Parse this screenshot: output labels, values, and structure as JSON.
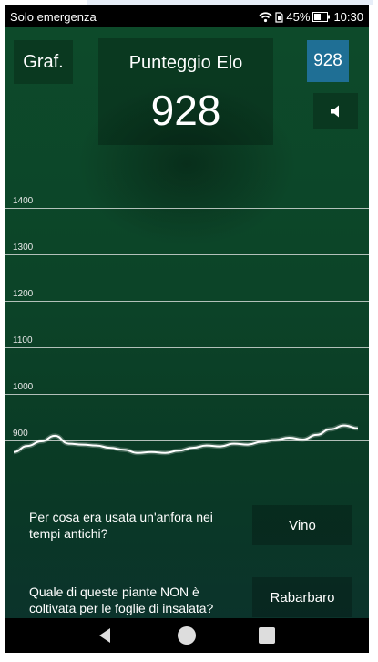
{
  "status_bar": {
    "carrier_text": "Solo emergenza",
    "battery_percent": "45%",
    "time": "10:30",
    "icons": [
      "wifi-icon",
      "sim-icon",
      "battery-icon"
    ]
  },
  "header": {
    "graph_button_label": "Graf.",
    "score_label": "Punteggio Elo",
    "score_value": "928",
    "score_button_label": "928",
    "sound_icon": "speaker-icon"
  },
  "chart_data": {
    "type": "line",
    "title": "",
    "xlabel": "",
    "ylabel": "",
    "y_ticks": [
      "1400",
      "1300",
      "1200",
      "1100",
      "1000",
      "900"
    ],
    "ylim": [
      880,
      1400
    ],
    "grid": true,
    "series": [
      {
        "values": [
          875,
          888,
          898,
          910,
          893,
          891,
          889,
          884,
          880,
          873,
          875,
          873,
          878,
          884,
          889,
          887,
          893,
          891,
          897,
          901,
          906,
          902,
          912,
          924,
          932,
          926
        ]
      }
    ]
  },
  "questions": [
    {
      "text": "Per cosa era usata un'anfora nei tempi antichi?",
      "answer": "Vino"
    },
    {
      "text": "Quale di queste piante NON è coltivata per le foglie di insalata?",
      "answer": "Rabarbaro"
    }
  ],
  "nav_bar": {
    "icons": [
      "back-icon",
      "home-icon",
      "recents-icon"
    ]
  },
  "colors": {
    "app_background": "#0c4428",
    "score_button": "#1f6f95",
    "chart_line": "#ffffff",
    "grid_line": "#ebebeb"
  }
}
